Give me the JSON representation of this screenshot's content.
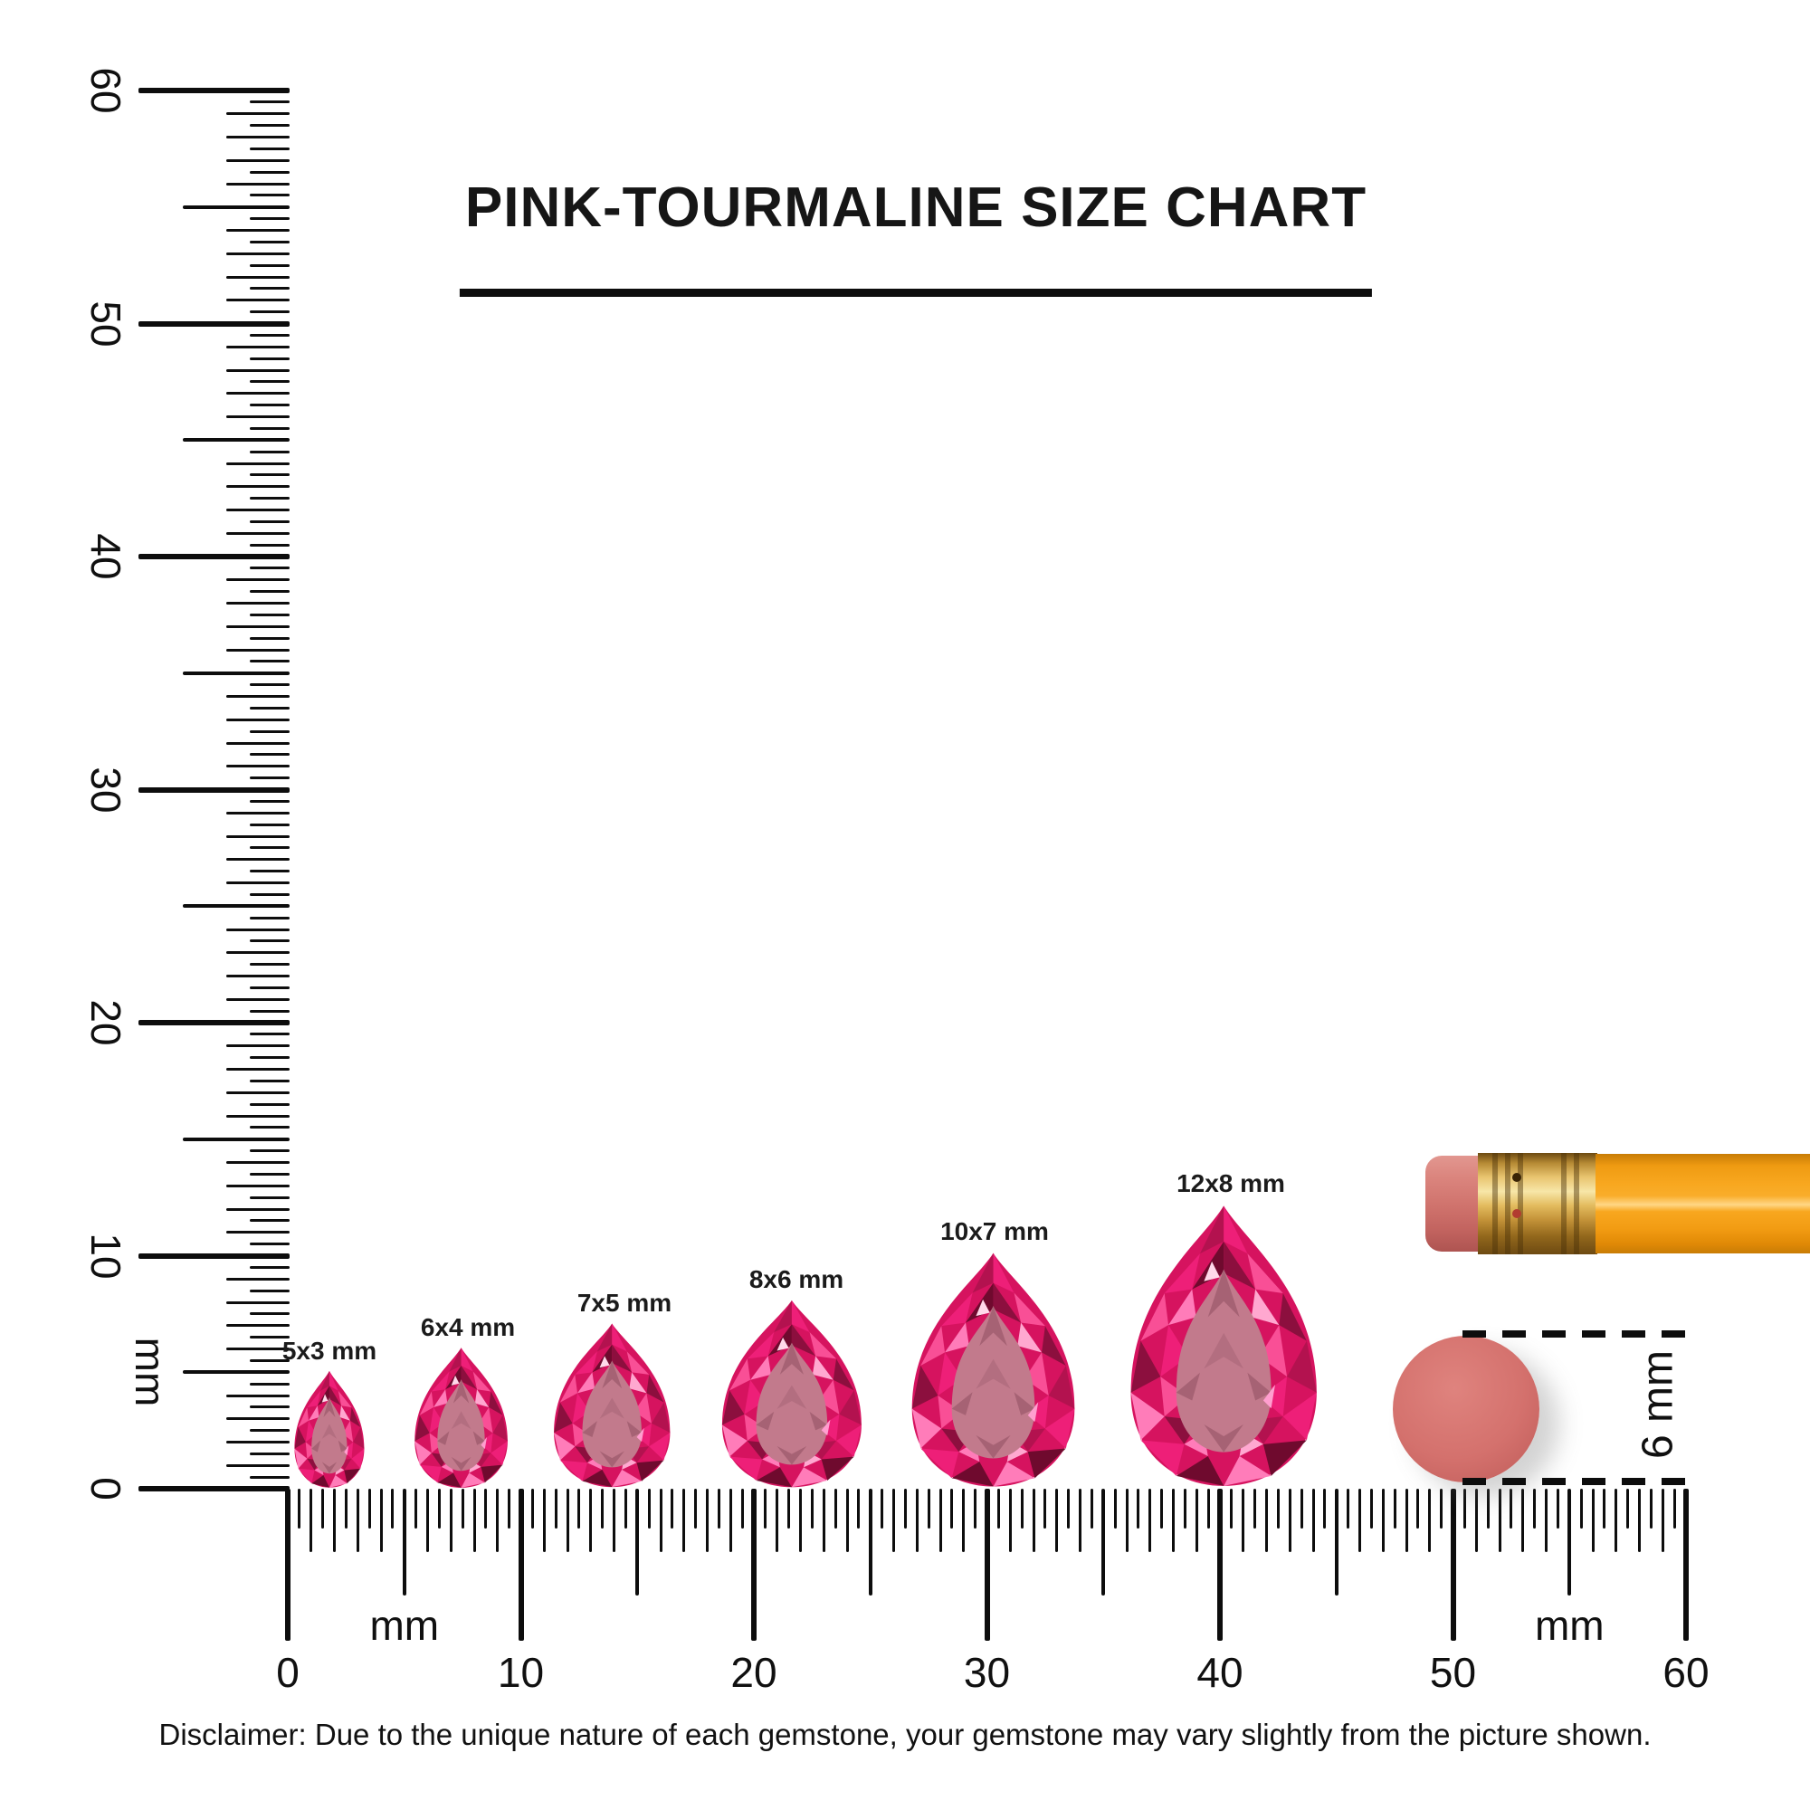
{
  "title": "PINK-TOURMALINE SIZE CHART",
  "unit_label": "mm",
  "rulers": {
    "horizontal": {
      "min_mm": 0,
      "max_mm": 60,
      "label_step_mm": 10,
      "labels": [
        "0",
        "10",
        "20",
        "30",
        "40",
        "50",
        "60"
      ],
      "unit_positions_mm": [
        5,
        55
      ]
    },
    "vertical": {
      "min_mm": 0,
      "max_mm": 60,
      "label_step_mm": 10,
      "labels": [
        "0",
        "10",
        "20",
        "30",
        "40",
        "50",
        "60"
      ],
      "unit_position_mm": 5
    }
  },
  "gems": [
    {
      "label": "5x3 mm",
      "width_mm": 3,
      "height_mm": 5
    },
    {
      "label": "6x4 mm",
      "width_mm": 4,
      "height_mm": 6
    },
    {
      "label": "7x5 mm",
      "width_mm": 5,
      "height_mm": 7
    },
    {
      "label": "8x6 mm",
      "width_mm": 6,
      "height_mm": 8
    },
    {
      "label": "10x7 mm",
      "width_mm": 7,
      "height_mm": 10
    },
    {
      "label": "12x8 mm",
      "width_mm": 8,
      "height_mm": 12
    }
  ],
  "eraser_dot": {
    "label": "6 mm",
    "color": "#d4716d"
  },
  "pencil": {
    "eraser_color": "#d0736d",
    "ferrule_color": "#e3bb5e",
    "body_color": "#f8a71f"
  },
  "gem_colors": {
    "base": "#d6135f",
    "dark": "#8c0f3e",
    "bright": "#ee1f78",
    "light": "#ff7cb9",
    "crimson": "#b3124f",
    "rose": "#f94f96",
    "deep": "#6f0a2e",
    "pale": "#ffa8d0",
    "table": "#c27a8c",
    "table_shadow": "#a66274"
  },
  "disclaimer": "Disclaimer: Due to the unique nature of each gemstone, your gemstone may vary slightly from the picture shown."
}
